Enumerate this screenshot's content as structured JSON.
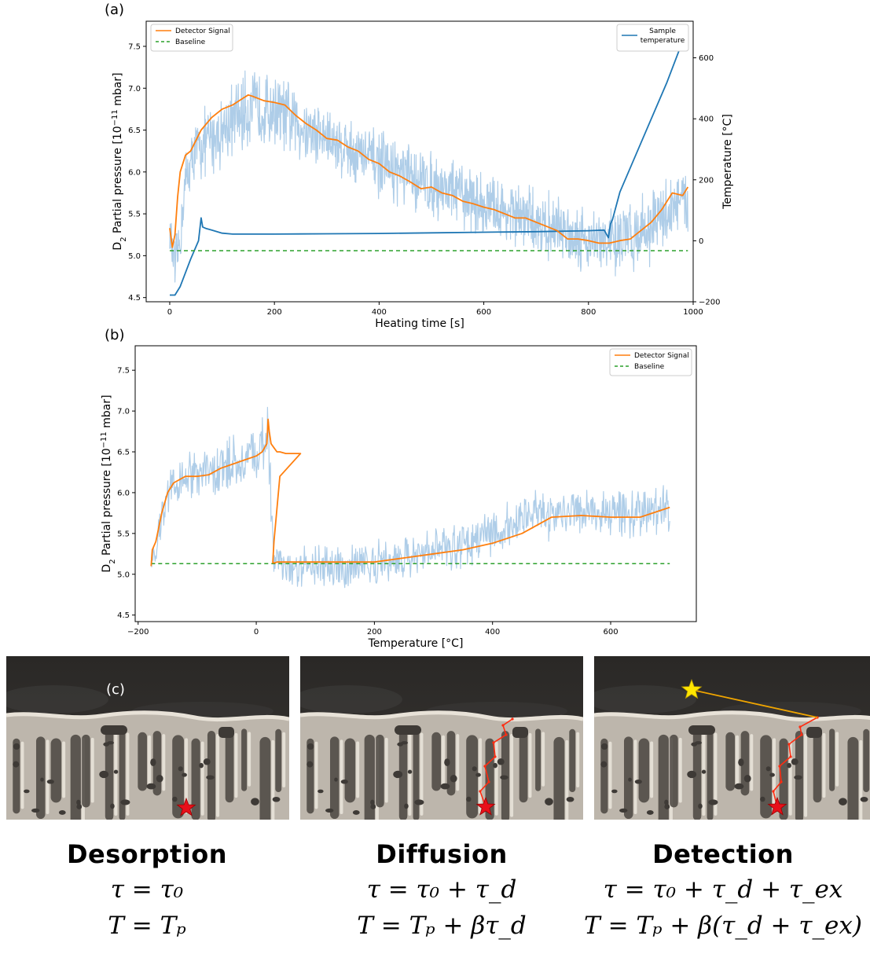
{
  "panels": {
    "a": "(a)",
    "b": "(b)",
    "c": "(c)"
  },
  "chart_data": [
    {
      "id": "a",
      "type": "line",
      "xlabel": "Heating time [s]",
      "ylabel_main": "D",
      "ylabel_sub": "2",
      "ylabel_rest": " Partial pressure [10",
      "ylabel_exp": "−11",
      "ylabel_end": " mbar]",
      "y2label": "Temperature [°C]",
      "xlim": [
        -45,
        1000
      ],
      "ylim": [
        4.45,
        7.8
      ],
      "y2lim": [
        -200,
        720
      ],
      "xticks": [
        0,
        200,
        400,
        600,
        800,
        1000
      ],
      "yticks": [
        4.5,
        5.0,
        5.5,
        6.0,
        6.5,
        7.0,
        7.5
      ],
      "y2ticks": [
        -200,
        0,
        200,
        400,
        600
      ],
      "y2ticklabels": [
        "−200",
        "0",
        "200",
        "400",
        "600"
      ],
      "legend_left": [
        {
          "name": "Detector Signal",
          "color": "#ff7f0e",
          "dash": false
        },
        {
          "name": "Baseline",
          "color": "#2ca02c",
          "dash": true
        }
      ],
      "legend_right": {
        "name_line1": "Sample",
        "name_line2": "temperature",
        "color": "#1f77b4"
      },
      "series": [
        {
          "name": "Detector Signal",
          "axis": "left",
          "color": "#ff7f0e",
          "x": [
            0,
            5,
            10,
            15,
            20,
            30,
            40,
            60,
            80,
            100,
            120,
            140,
            150,
            160,
            180,
            200,
            220,
            240,
            260,
            280,
            300,
            320,
            340,
            360,
            380,
            400,
            420,
            440,
            460,
            480,
            500,
            520,
            540,
            560,
            580,
            600,
            620,
            640,
            660,
            680,
            700,
            720,
            740,
            760,
            780,
            800,
            820,
            840,
            860,
            880,
            900,
            920,
            940,
            960,
            980,
            990
          ],
          "y": [
            5.33,
            5.1,
            5.25,
            5.7,
            6.0,
            6.2,
            6.25,
            6.5,
            6.65,
            6.75,
            6.8,
            6.88,
            6.92,
            6.9,
            6.85,
            6.83,
            6.8,
            6.68,
            6.58,
            6.5,
            6.4,
            6.38,
            6.3,
            6.25,
            6.15,
            6.1,
            6.0,
            5.95,
            5.88,
            5.8,
            5.82,
            5.75,
            5.72,
            5.65,
            5.62,
            5.58,
            5.55,
            5.5,
            5.45,
            5.45,
            5.4,
            5.35,
            5.3,
            5.2,
            5.2,
            5.18,
            5.15,
            5.15,
            5.18,
            5.2,
            5.3,
            5.4,
            5.55,
            5.75,
            5.72,
            5.82
          ]
        },
        {
          "name": "Baseline",
          "axis": "left",
          "color": "#2ca02c",
          "dash": true,
          "x": [
            0,
            990
          ],
          "y": [
            5.06,
            5.06
          ]
        },
        {
          "name": "Sample temperature",
          "axis": "right",
          "color": "#1f77b4",
          "x": [
            0,
            10,
            20,
            40,
            55,
            60,
            63,
            70,
            80,
            100,
            120,
            200,
            300,
            400,
            500,
            600,
            700,
            800,
            830,
            838,
            842,
            846,
            860,
            900,
            950,
            990
          ],
          "y": [
            -178,
            -178,
            -150,
            -60,
            0,
            75,
            45,
            40,
            35,
            25,
            22,
            22,
            23,
            24,
            26,
            28,
            30,
            33,
            35,
            10,
            55,
            70,
            160,
            320,
            520,
            700
          ]
        },
        {
          "name": "raw signal",
          "axis": "left",
          "color": "#aecde8",
          "noise": true,
          "x": [
            0,
            10,
            20,
            30,
            50,
            80,
            100,
            150,
            200,
            250,
            300,
            350,
            400,
            450,
            500,
            550,
            600,
            650,
            700,
            750,
            800,
            830,
            850,
            880,
            900,
            930,
            950,
            970,
            990
          ],
          "y": [
            5.3,
            4.8,
            5.2,
            5.9,
            6.25,
            6.4,
            6.5,
            6.75,
            6.75,
            6.55,
            6.4,
            6.25,
            6.1,
            5.95,
            5.85,
            5.75,
            5.6,
            5.5,
            5.4,
            5.3,
            5.2,
            5.15,
            5.18,
            5.22,
            5.3,
            5.4,
            5.5,
            5.65,
            5.6
          ],
          "amp": [
            0.3,
            0.4,
            0.4,
            0.4,
            0.45,
            0.5,
            0.5,
            0.55,
            0.5,
            0.5,
            0.45,
            0.45,
            0.45,
            0.45,
            0.45,
            0.45,
            0.45,
            0.45,
            0.45,
            0.45,
            0.45,
            0.45,
            0.5,
            0.5,
            0.5,
            0.5,
            0.5,
            0.45,
            0.45
          ]
        }
      ]
    },
    {
      "id": "b",
      "type": "line",
      "xlabel": "Temperature [°C]",
      "ylabel_main": "D",
      "ylabel_sub": "2",
      "ylabel_rest": " Partial pressure [10",
      "ylabel_exp": "−11",
      "ylabel_end": " mbar]",
      "xlim": [
        -205,
        745
      ],
      "ylim": [
        4.42,
        7.8
      ],
      "xticks": [
        -200,
        0,
        200,
        400,
        600
      ],
      "xticklabels": [
        "−200",
        "0",
        "200",
        "400",
        "600"
      ],
      "yticks": [
        4.5,
        5.0,
        5.5,
        6.0,
        6.5,
        7.0,
        7.5
      ],
      "legend": [
        {
          "name": "Detector Signal",
          "color": "#ff7f0e",
          "dash": false
        },
        {
          "name": "Baseline",
          "color": "#2ca02c",
          "dash": true
        }
      ],
      "series": [
        {
          "name": "Detector Signal",
          "color": "#ff7f0e",
          "x": [
            -178,
            -176,
            -170,
            -160,
            -150,
            -140,
            -120,
            -100,
            -80,
            -60,
            -40,
            -20,
            0,
            10,
            18,
            20,
            22,
            25,
            30,
            35,
            40,
            50,
            60,
            70,
            75,
            40,
            30,
            28,
            32,
            35,
            60,
            100,
            150,
            200,
            250,
            300,
            350,
            400,
            450,
            500,
            550,
            600,
            650,
            700
          ],
          "y": [
            5.1,
            5.3,
            5.4,
            5.75,
            6.0,
            6.12,
            6.2,
            6.2,
            6.22,
            6.3,
            6.35,
            6.4,
            6.45,
            6.5,
            6.6,
            6.9,
            6.75,
            6.6,
            6.55,
            6.5,
            6.5,
            6.48,
            6.48,
            6.48,
            6.48,
            6.2,
            5.4,
            5.14,
            5.14,
            5.15,
            5.15,
            5.15,
            5.15,
            5.15,
            5.2,
            5.25,
            5.3,
            5.38,
            5.5,
            5.7,
            5.72,
            5.7,
            5.7,
            5.82
          ]
        },
        {
          "name": "Baseline",
          "color": "#2ca02c",
          "dash": true,
          "x": [
            -178,
            700
          ],
          "y": [
            5.13,
            5.13
          ]
        },
        {
          "name": "raw signal",
          "color": "#aecde8",
          "noise": true,
          "x": [
            -178,
            -160,
            -140,
            -120,
            -100,
            -80,
            -60,
            -40,
            -20,
            0,
            15,
            20,
            25,
            30,
            40,
            60,
            100,
            150,
            200,
            250,
            300,
            350,
            400,
            450,
            500,
            550,
            600,
            650,
            700
          ],
          "y": [
            5.1,
            5.7,
            6.1,
            6.2,
            6.25,
            6.25,
            6.3,
            6.4,
            6.45,
            6.45,
            6.55,
            6.7,
            5.8,
            5.2,
            5.15,
            5.1,
            5.1,
            5.1,
            5.15,
            5.2,
            5.3,
            5.4,
            5.5,
            5.65,
            5.75,
            5.75,
            5.75,
            5.75,
            5.82
          ],
          "amp": [
            0.2,
            0.35,
            0.35,
            0.35,
            0.35,
            0.35,
            0.4,
            0.4,
            0.4,
            0.4,
            0.5,
            0.6,
            0.5,
            0.3,
            0.3,
            0.3,
            0.3,
            0.3,
            0.3,
            0.3,
            0.3,
            0.35,
            0.35,
            0.35,
            0.35,
            0.35,
            0.35,
            0.35,
            0.35
          ]
        }
      ]
    }
  ],
  "stages": [
    {
      "title": "Desorption",
      "eq1": "τ = τ₀",
      "eq2": "T = Tₚ"
    },
    {
      "title": "Diffusion",
      "eq1": "τ = τ₀ + τ_d",
      "eq2": "T = Tₚ + βτ_d"
    },
    {
      "title": "Detection",
      "eq1": "τ = τ₀ + τ_d + τ_ex",
      "eq2": "T = Tₚ + β(τ_d + τ_ex)"
    }
  ],
  "colors": {
    "detector": "#ff7f0e",
    "baseline": "#2ca02c",
    "temperature": "#1f77b4",
    "raw": "#aecde8",
    "star_red": "#e8101a",
    "star_yellow": "#ffe600",
    "path": "#ff2b10"
  }
}
